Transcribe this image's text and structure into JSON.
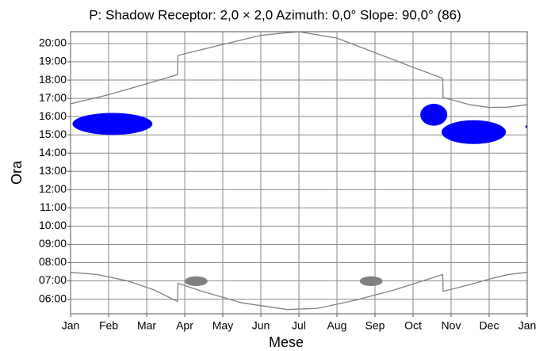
{
  "chart_data": {
    "type": "line",
    "title": "P: Shadow Receptor: 2,0 × 2,0  Azimuth: 0,0°  Slope: 90,0° (86)",
    "x_label": "Mese",
    "y_label": "Ora",
    "xlim": [
      0,
      12
    ],
    "xticks": [
      {
        "value": 0,
        "label": "Jan"
      },
      {
        "value": 1,
        "label": "Feb"
      },
      {
        "value": 2,
        "label": "Mar"
      },
      {
        "value": 3,
        "label": "Apr"
      },
      {
        "value": 4,
        "label": "May"
      },
      {
        "value": 5,
        "label": "Jun"
      },
      {
        "value": 6,
        "label": "Jul"
      },
      {
        "value": 7,
        "label": "Aug"
      },
      {
        "value": 8,
        "label": "Sep"
      },
      {
        "value": 9,
        "label": "Oct"
      },
      {
        "value": 10,
        "label": "Nov"
      },
      {
        "value": 11,
        "label": "Dec"
      },
      {
        "value": 12,
        "label": "Jan"
      }
    ],
    "ylim": [
      5.2,
      20.65
    ],
    "yticks": [
      {
        "value": 6,
        "label": "06:00"
      },
      {
        "value": 7,
        "label": "07:00"
      },
      {
        "value": 8,
        "label": "08:00"
      },
      {
        "value": 9,
        "label": "09:00"
      },
      {
        "value": 10,
        "label": "10:00"
      },
      {
        "value": 11,
        "label": "11:00"
      },
      {
        "value": 12,
        "label": "12:00"
      },
      {
        "value": 13,
        "label": "13:00"
      },
      {
        "value": 14,
        "label": "14:00"
      },
      {
        "value": 15,
        "label": "15:00"
      },
      {
        "value": 16,
        "label": "16:00"
      },
      {
        "value": 17,
        "label": "17:00"
      },
      {
        "value": 18,
        "label": "18:00"
      },
      {
        "value": 19,
        "label": "19:00"
      },
      {
        "value": 20,
        "label": "20:00"
      }
    ],
    "grid": true,
    "series": [
      {
        "color": "#808080",
        "x": [
          0,
          1,
          2,
          2.81,
          2.82,
          4,
          5,
          5.7,
          6,
          7,
          8,
          9,
          9.78,
          9.79,
          10.5,
          11,
          11.5,
          12
        ],
        "values": [
          16.7,
          17.2,
          17.8,
          18.3,
          19.35,
          19.95,
          20.45,
          20.6,
          20.65,
          20.3,
          19.5,
          18.7,
          18.1,
          17.05,
          16.65,
          16.5,
          16.52,
          16.65
        ]
      },
      {
        "color": "#808080",
        "x": [
          0,
          0.7,
          1.5,
          2.2,
          2.81,
          2.82,
          3.5,
          4.5,
          5.7,
          6.5,
          7.5,
          8.5,
          9.78,
          9.79,
          10.5,
          11,
          11.5,
          12
        ],
        "values": [
          7.47,
          7.35,
          7.0,
          6.5,
          5.87,
          6.87,
          6.4,
          5.8,
          5.43,
          5.5,
          5.95,
          6.5,
          7.35,
          6.43,
          6.8,
          7.1,
          7.35,
          7.47
        ]
      }
    ],
    "zones": [
      {
        "color": "#0000ff",
        "x": [
          0.05,
          2.15
        ],
        "y": [
          15.0,
          16.2
        ]
      },
      {
        "color": "#0000ff",
        "x": [
          9.19,
          9.9
        ],
        "y": [
          15.5,
          16.7
        ]
      },
      {
        "color": "#0000ff",
        "x": [
          9.75,
          11.44
        ],
        "y": [
          14.5,
          15.8
        ]
      },
      {
        "color": "#0000ff",
        "x": [
          11.95,
          12.1
        ],
        "y": [
          15.35,
          15.55
        ]
      },
      {
        "color": "#808080",
        "x": [
          3.0,
          3.6
        ],
        "y": [
          6.72,
          7.25
        ]
      },
      {
        "color": "#808080",
        "x": [
          7.6,
          8.2
        ],
        "y": [
          6.72,
          7.25
        ]
      }
    ]
  }
}
